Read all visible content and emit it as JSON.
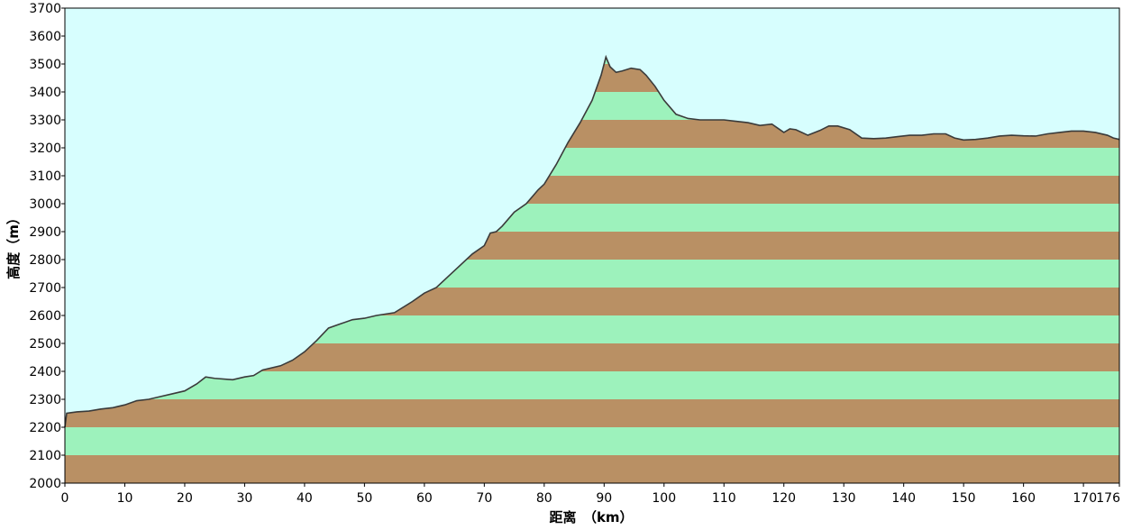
{
  "chart_data": {
    "type": "area",
    "xlabel": "距离　（km）",
    "ylabel": "高度（m）",
    "xlim": [
      0,
      176
    ],
    "ylim": [
      2000,
      3700
    ],
    "x_ticks": [
      0,
      10,
      20,
      30,
      40,
      50,
      60,
      70,
      80,
      90,
      100,
      110,
      120,
      130,
      140,
      150,
      160,
      170,
      176
    ],
    "y_ticks": [
      2000,
      2100,
      2200,
      2300,
      2400,
      2500,
      2600,
      2700,
      2800,
      2900,
      3000,
      3100,
      3200,
      3300,
      3400,
      3500,
      3600,
      3700
    ],
    "grid": false,
    "legend": "none",
    "colors": {
      "sky": "#d7fefe",
      "band_brown": "#b99064",
      "band_green": "#9df2bc",
      "outline": "#3a3a3a",
      "frame": "#000000"
    },
    "band_height": 100,
    "series": [
      {
        "values": [
          {
            "x": 0,
            "y": 2200
          },
          {
            "x": 0.3,
            "y": 2250
          },
          {
            "x": 2,
            "y": 2255
          },
          {
            "x": 4,
            "y": 2258
          },
          {
            "x": 6,
            "y": 2265
          },
          {
            "x": 8,
            "y": 2270
          },
          {
            "x": 10,
            "y": 2280
          },
          {
            "x": 12,
            "y": 2295
          },
          {
            "x": 14,
            "y": 2300
          },
          {
            "x": 16,
            "y": 2310
          },
          {
            "x": 18,
            "y": 2320
          },
          {
            "x": 20,
            "y": 2330
          },
          {
            "x": 22,
            "y": 2355
          },
          {
            "x": 23.5,
            "y": 2380
          },
          {
            "x": 25,
            "y": 2375
          },
          {
            "x": 28,
            "y": 2370
          },
          {
            "x": 30,
            "y": 2380
          },
          {
            "x": 31.5,
            "y": 2385
          },
          {
            "x": 33,
            "y": 2405
          },
          {
            "x": 36,
            "y": 2420
          },
          {
            "x": 38,
            "y": 2440
          },
          {
            "x": 40,
            "y": 2470
          },
          {
            "x": 42,
            "y": 2510
          },
          {
            "x": 44,
            "y": 2555
          },
          {
            "x": 46,
            "y": 2570
          },
          {
            "x": 48,
            "y": 2585
          },
          {
            "x": 50,
            "y": 2590
          },
          {
            "x": 52,
            "y": 2600
          },
          {
            "x": 55,
            "y": 2610
          },
          {
            "x": 58,
            "y": 2650
          },
          {
            "x": 60,
            "y": 2680
          },
          {
            "x": 62,
            "y": 2700
          },
          {
            "x": 64,
            "y": 2740
          },
          {
            "x": 66,
            "y": 2780
          },
          {
            "x": 68,
            "y": 2820
          },
          {
            "x": 70,
            "y": 2850
          },
          {
            "x": 71,
            "y": 2895
          },
          {
            "x": 72,
            "y": 2900
          },
          {
            "x": 73,
            "y": 2920
          },
          {
            "x": 75,
            "y": 2970
          },
          {
            "x": 77,
            "y": 3000
          },
          {
            "x": 79,
            "y": 3050
          },
          {
            "x": 80,
            "y": 3070
          },
          {
            "x": 82,
            "y": 3140
          },
          {
            "x": 84,
            "y": 3220
          },
          {
            "x": 86,
            "y": 3290
          },
          {
            "x": 88,
            "y": 3370
          },
          {
            "x": 89.5,
            "y": 3460
          },
          {
            "x": 90.3,
            "y": 3525
          },
          {
            "x": 91,
            "y": 3490
          },
          {
            "x": 92,
            "y": 3470
          },
          {
            "x": 93,
            "y": 3475
          },
          {
            "x": 94.5,
            "y": 3485
          },
          {
            "x": 96,
            "y": 3480
          },
          {
            "x": 97,
            "y": 3460
          },
          {
            "x": 98.5,
            "y": 3420
          },
          {
            "x": 100,
            "y": 3370
          },
          {
            "x": 102,
            "y": 3320
          },
          {
            "x": 104,
            "y": 3305
          },
          {
            "x": 106,
            "y": 3300
          },
          {
            "x": 108,
            "y": 3300
          },
          {
            "x": 110,
            "y": 3300
          },
          {
            "x": 112,
            "y": 3295
          },
          {
            "x": 114,
            "y": 3290
          },
          {
            "x": 116,
            "y": 3280
          },
          {
            "x": 118,
            "y": 3285
          },
          {
            "x": 119,
            "y": 3270
          },
          {
            "x": 120,
            "y": 3255
          },
          {
            "x": 121,
            "y": 3268
          },
          {
            "x": 122,
            "y": 3265
          },
          {
            "x": 124,
            "y": 3245
          },
          {
            "x": 126,
            "y": 3262
          },
          {
            "x": 127.5,
            "y": 3278
          },
          {
            "x": 129,
            "y": 3278
          },
          {
            "x": 131,
            "y": 3265
          },
          {
            "x": 133,
            "y": 3235
          },
          {
            "x": 135,
            "y": 3233
          },
          {
            "x": 137,
            "y": 3235
          },
          {
            "x": 139,
            "y": 3240
          },
          {
            "x": 141,
            "y": 3245
          },
          {
            "x": 143,
            "y": 3245
          },
          {
            "x": 145,
            "y": 3250
          },
          {
            "x": 147,
            "y": 3250
          },
          {
            "x": 148.5,
            "y": 3235
          },
          {
            "x": 150,
            "y": 3228
          },
          {
            "x": 152,
            "y": 3230
          },
          {
            "x": 154,
            "y": 3235
          },
          {
            "x": 156,
            "y": 3242
          },
          {
            "x": 158,
            "y": 3245
          },
          {
            "x": 160,
            "y": 3243
          },
          {
            "x": 162,
            "y": 3242
          },
          {
            "x": 164,
            "y": 3250
          },
          {
            "x": 166,
            "y": 3255
          },
          {
            "x": 168,
            "y": 3260
          },
          {
            "x": 170,
            "y": 3260
          },
          {
            "x": 172,
            "y": 3255
          },
          {
            "x": 174,
            "y": 3245
          },
          {
            "x": 175,
            "y": 3235
          },
          {
            "x": 176,
            "y": 3230
          }
        ]
      }
    ]
  }
}
